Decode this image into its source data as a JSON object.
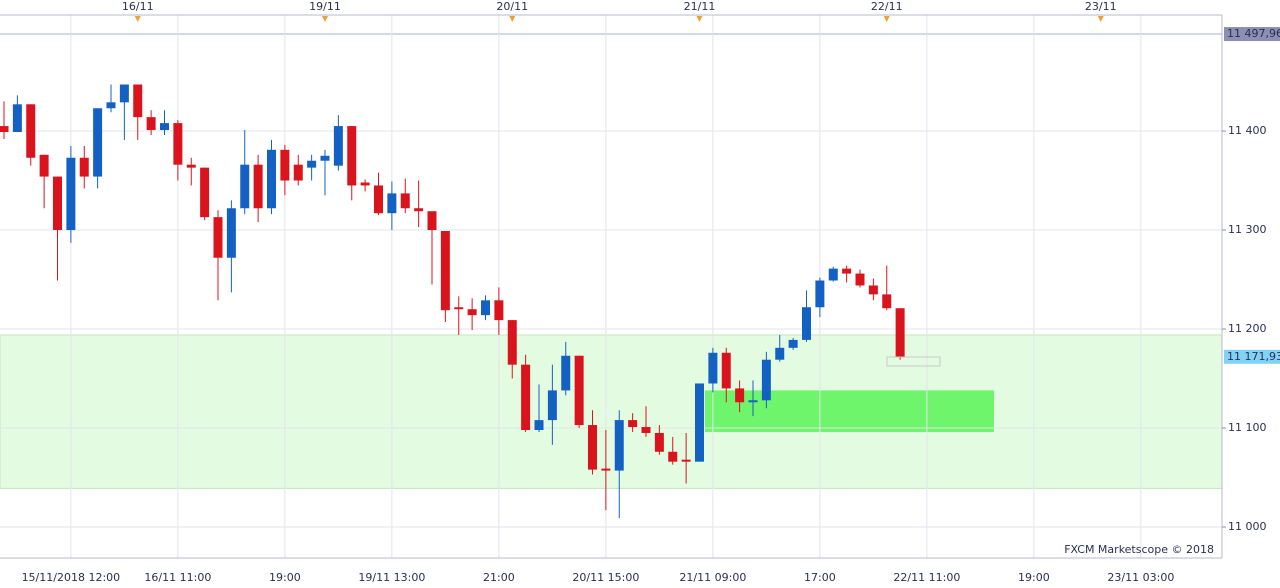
{
  "chart_data": {
    "type": "candlestick",
    "categories": [
      null,
      null,
      null,
      null,
      null,
      "15/11/2018 12:00",
      null,
      null,
      null,
      null,
      null,
      null,
      null,
      "16/11 11:00",
      null,
      null,
      null,
      null,
      null,
      null,
      null,
      "19:00",
      null,
      null,
      null,
      null,
      null,
      null,
      null,
      "19/11 13:00",
      null,
      null,
      null,
      null,
      null,
      null,
      null,
      "21:00",
      null,
      null,
      null,
      null,
      null,
      null,
      null,
      "20/11 15:00",
      null,
      null,
      null,
      null,
      null,
      null,
      null,
      "21/11 09:00",
      null,
      null,
      null,
      null,
      null,
      null,
      null,
      "17:00",
      null,
      null,
      null,
      null,
      null,
      null,
      null,
      "22/11 11:00",
      null,
      null,
      null,
      null,
      null,
      null,
      null,
      "19:00",
      null,
      null,
      null,
      null,
      null,
      null,
      null,
      "23/11 03:00",
      null,
      null,
      null,
      null,
      null
    ],
    "day_labels": [
      null,
      null,
      null,
      null,
      null,
      null,
      null,
      null,
      null,
      null,
      "16/11",
      null,
      null,
      null,
      null,
      null,
      null,
      null,
      null,
      null,
      null,
      null,
      null,
      null,
      "19/11",
      null,
      null,
      null,
      null,
      null,
      null,
      null,
      null,
      null,
      null,
      null,
      null,
      null,
      "20/11",
      null,
      null,
      null,
      null,
      null,
      null,
      null,
      null,
      null,
      null,
      null,
      null,
      null,
      "21/11",
      null,
      null,
      null,
      null,
      null,
      null,
      null,
      null,
      null,
      null,
      null,
      null,
      null,
      "22/11",
      null,
      null,
      null,
      null,
      null,
      null,
      null,
      null,
      null,
      null,
      null,
      null,
      null,
      null,
      null,
      "23/11",
      null,
      null,
      null,
      null,
      null,
      null,
      null,
      null
    ],
    "open": [
      11405,
      11399,
      11427,
      11376,
      11354,
      11300,
      11373,
      11354,
      11423,
      11429,
      11447,
      11414,
      11401,
      11408,
      11366,
      11363,
      11313,
      11272,
      11322,
      11366,
      11322,
      11381,
      11366,
      11363,
      11370,
      11365,
      11405,
      11348,
      11345,
      11317,
      11337,
      11322,
      11319,
      11299,
      11222,
      11220,
      11214,
      11229,
      11209,
      11164,
      11098,
      11108,
      11138,
      11173,
      11103,
      11059,
      11057,
      11108,
      11101,
      11095,
      11076,
      11068,
      11066,
      11145,
      11176,
      11140,
      11126,
      11128,
      11169,
      11181,
      11189,
      11222,
      11249,
      11261,
      11256,
      11244,
      11235,
      11221,
      null,
      null,
      null,
      null,
      null,
      null,
      null,
      null,
      null,
      null,
      null,
      null,
      null,
      null,
      null,
      null,
      null,
      null,
      null,
      null,
      null,
      null,
      null
    ],
    "high": [
      11430,
      11436,
      11427,
      11376,
      11354,
      11385,
      11385,
      11423,
      11447,
      11447,
      11447,
      11421,
      11421,
      11411,
      11373,
      11363,
      11320,
      11330,
      11401,
      11376,
      11391,
      11386,
      11376,
      11376,
      11381,
      11416,
      11405,
      11351,
      11358,
      11349,
      11352,
      11350,
      11319,
      11299,
      11233,
      11231,
      11234,
      11242,
      11209,
      11174,
      11144,
      11164,
      11187,
      11173,
      11118,
      11098,
      11118,
      11115,
      11122,
      11103,
      11091,
      11095,
      11145,
      11181,
      11181,
      11148,
      11148,
      11177,
      11194,
      11191,
      11239,
      11252,
      11263,
      11264,
      11260,
      11251,
      11264,
      11221,
      null,
      null,
      null,
      null,
      null,
      null,
      null,
      null,
      null,
      null,
      null,
      null,
      null,
      null,
      null,
      null,
      null,
      null,
      null,
      null,
      null,
      null,
      null
    ],
    "low": [
      11392,
      11399,
      11365,
      11322,
      11249,
      11287,
      11342,
      11342,
      11419,
      11391,
      11391,
      11396,
      11396,
      11350,
      11345,
      11310,
      11229,
      11237,
      11316,
      11308,
      11316,
      11335,
      11345,
      11350,
      11335,
      11360,
      11330,
      11339,
      11315,
      11300,
      11317,
      11303,
      11245,
      11207,
      11194,
      11199,
      11209,
      11194,
      11150,
      11096,
      11096,
      11083,
      11133,
      11100,
      11053,
      11017,
      11009,
      11096,
      11091,
      11073,
      11063,
      11044,
      11066,
      11136,
      11126,
      11116,
      11112,
      11120,
      11167,
      11179,
      11187,
      11212,
      11248,
      11247,
      11242,
      11229,
      11219,
      11169,
      null,
      null,
      null,
      null,
      null,
      null,
      null,
      null,
      null,
      null,
      null,
      null,
      null,
      null,
      null,
      null,
      null,
      null,
      null,
      null,
      null,
      null,
      null
    ],
    "close": [
      11399,
      11427,
      11373,
      11354,
      11300,
      11373,
      11354,
      11423,
      11429,
      11447,
      11414,
      11401,
      11408,
      11366,
      11363,
      11313,
      11272,
      11322,
      11366,
      11322,
      11381,
      11350,
      11350,
      11370,
      11375,
      11405,
      11345,
      11345,
      11317,
      11337,
      11322,
      11319,
      11300,
      11219,
      11220,
      11214,
      11229,
      11209,
      11164,
      11098,
      11108,
      11138,
      11173,
      11103,
      11058,
      11057,
      11108,
      11101,
      11095,
      11076,
      11066,
      11066,
      11145,
      11176,
      11140,
      11126,
      11128,
      11169,
      11181,
      11189,
      11222,
      11249,
      11261,
      11256,
      11244,
      11235,
      11221,
      11172,
      null,
      null,
      null,
      null,
      null,
      null,
      null,
      null,
      null,
      null,
      null,
      null,
      null,
      null,
      null,
      null,
      null,
      null,
      null,
      null,
      null,
      null,
      null
    ],
    "up_color": "#1461c4",
    "down_color": "#d9141c",
    "ylim": [
      10968.7,
      11517.2
    ],
    "yticks": [
      {
        "value": 11000,
        "label": "11 000"
      },
      {
        "value": 11100,
        "label": "11 100"
      },
      {
        "value": 11200,
        "label": "11 200"
      },
      {
        "value": 11300,
        "label": "11 300"
      },
      {
        "value": 11400,
        "label": "11 400"
      }
    ],
    "grid": true,
    "price_labels": [
      {
        "value": 11497.96,
        "label": "11 497,96",
        "color": "#8b8fb3"
      },
      {
        "value": 11171.93,
        "label": "11 171,93",
        "color": "#80d2f7"
      }
    ],
    "zones": [
      {
        "low": 11039,
        "high": 11194,
        "color": "#e3fbe0"
      },
      {
        "low": 11096,
        "high": 11138,
        "color": "#6ff56b"
      }
    ],
    "watermark": "FXCM Marketscope © 2018"
  }
}
